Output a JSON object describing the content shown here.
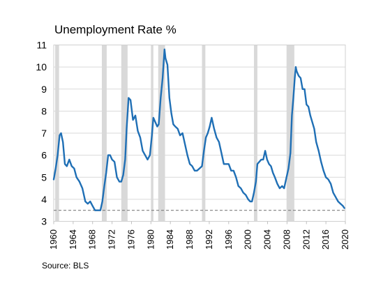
{
  "title": "Unemployment Rate %",
  "source": "Source: BLS",
  "chart_data": {
    "type": "line",
    "title": "Unemployment Rate %",
    "xlabel": "",
    "ylabel": "",
    "xlim": [
      1960,
      2020
    ],
    "ylim": [
      3,
      11
    ],
    "yticks": [
      3,
      4,
      5,
      6,
      7,
      8,
      9,
      10,
      11
    ],
    "xticks": [
      1960,
      1964,
      1968,
      1972,
      1976,
      1980,
      1984,
      1988,
      1992,
      1996,
      2000,
      2004,
      2008,
      2012,
      2016,
      2020
    ],
    "grid": "horizontal",
    "line_color": "#1f6fb5",
    "shade_color": "#d9d9d9",
    "reference_line": {
      "y": 3.5,
      "style": "dashed",
      "color": "#7f7f7f"
    },
    "recessions": [
      [
        1960.3,
        1961.1
      ],
      [
        1969.9,
        1970.9
      ],
      [
        1973.9,
        1975.2
      ],
      [
        1980.0,
        1980.5
      ],
      [
        1981.5,
        1982.9
      ],
      [
        1990.5,
        1991.2
      ],
      [
        2001.2,
        2001.9
      ],
      [
        2007.9,
        2009.5
      ]
    ],
    "series": [
      {
        "x": [
          1960.0,
          1960.4,
          1960.8,
          1961.2,
          1961.5,
          1961.9,
          1962.3,
          1962.7,
          1963.2,
          1963.7,
          1964.2,
          1964.7,
          1965.3,
          1965.9,
          1966.5,
          1967.0,
          1967.5,
          1968.0,
          1968.5,
          1969.0,
          1969.6,
          1970.0,
          1970.4,
          1970.8,
          1971.2,
          1971.6,
          1972.0,
          1972.5,
          1973.0,
          1973.5,
          1973.9,
          1974.3,
          1974.7,
          1975.0,
          1975.4,
          1975.8,
          1976.3,
          1976.8,
          1977.3,
          1977.8,
          1978.3,
          1978.8,
          1979.3,
          1979.8,
          1980.2,
          1980.5,
          1980.9,
          1981.3,
          1981.6,
          1982.0,
          1982.4,
          1982.8,
          1983.0,
          1983.4,
          1983.8,
          1984.2,
          1984.6,
          1985.0,
          1985.5,
          1986.0,
          1986.5,
          1987.0,
          1987.5,
          1988.0,
          1988.5,
          1989.0,
          1989.5,
          1990.0,
          1990.5,
          1990.9,
          1991.3,
          1991.7,
          1992.1,
          1992.5,
          1993.0,
          1993.5,
          1994.0,
          1994.5,
          1995.0,
          1995.5,
          1996.0,
          1996.5,
          1997.0,
          1997.5,
          1998.0,
          1998.5,
          1999.0,
          1999.5,
          2000.0,
          2000.4,
          2000.8,
          2001.2,
          2001.6,
          2001.9,
          2002.3,
          2002.7,
          2003.1,
          2003.5,
          2003.9,
          2004.3,
          2004.7,
          2005.1,
          2005.5,
          2006.0,
          2006.5,
          2007.0,
          2007.4,
          2007.9,
          2008.3,
          2008.7,
          2009.0,
          2009.3,
          2009.6,
          2009.8,
          2010.0,
          2010.4,
          2010.8,
          2011.2,
          2011.6,
          2012.0,
          2012.4,
          2012.8,
          2013.2,
          2013.6,
          2014.0,
          2014.5,
          2015.0,
          2015.5,
          2016.0,
          2016.5,
          2017.0,
          2017.5,
          2018.0,
          2018.5,
          2019.0,
          2019.5,
          2019.8
        ],
        "y": [
          4.9,
          5.4,
          6.0,
          6.9,
          7.0,
          6.6,
          5.6,
          5.5,
          5.8,
          5.5,
          5.4,
          5.0,
          4.8,
          4.5,
          3.9,
          3.8,
          3.9,
          3.7,
          3.5,
          3.5,
          3.5,
          3.9,
          4.6,
          5.2,
          6.0,
          6.0,
          5.8,
          5.7,
          5.0,
          4.8,
          4.8,
          5.1,
          5.8,
          7.2,
          8.6,
          8.5,
          7.6,
          7.8,
          7.1,
          6.8,
          6.2,
          6.0,
          5.8,
          6.0,
          6.9,
          7.7,
          7.5,
          7.3,
          7.4,
          8.6,
          9.5,
          10.8,
          10.4,
          10.1,
          8.6,
          7.9,
          7.4,
          7.3,
          7.2,
          6.9,
          7.0,
          6.5,
          6.0,
          5.6,
          5.5,
          5.3,
          5.3,
          5.4,
          5.5,
          6.2,
          6.8,
          7.0,
          7.3,
          7.7,
          7.2,
          6.8,
          6.6,
          6.1,
          5.6,
          5.6,
          5.6,
          5.3,
          5.3,
          5.0,
          4.6,
          4.5,
          4.3,
          4.2,
          4.0,
          3.9,
          3.9,
          4.3,
          4.8,
          5.6,
          5.7,
          5.8,
          5.8,
          6.2,
          5.8,
          5.6,
          5.5,
          5.2,
          5.0,
          4.7,
          4.5,
          4.6,
          4.5,
          5.0,
          5.4,
          6.1,
          7.8,
          8.6,
          9.5,
          10.0,
          9.8,
          9.6,
          9.5,
          9.0,
          9.0,
          8.3,
          8.2,
          7.8,
          7.5,
          7.2,
          6.6,
          6.2,
          5.7,
          5.3,
          5.0,
          4.9,
          4.7,
          4.3,
          4.1,
          3.9,
          3.8,
          3.7,
          3.6
        ]
      }
    ]
  }
}
